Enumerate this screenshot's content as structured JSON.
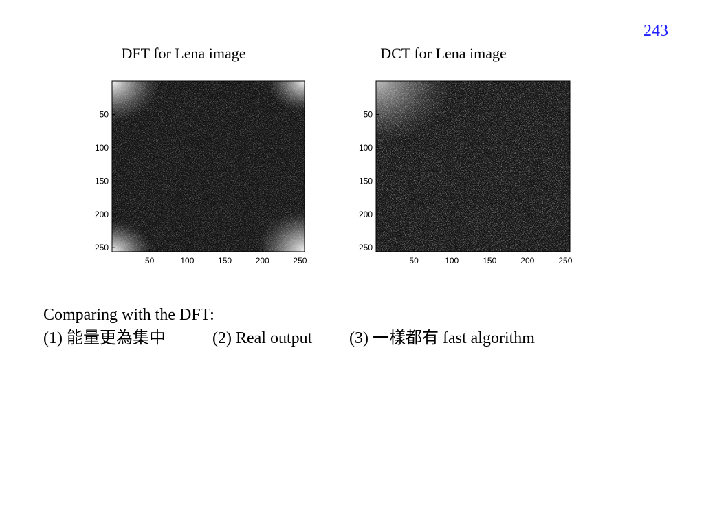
{
  "page_number": "243",
  "panels": [
    {
      "title": "DFT for Lena image",
      "xticks": [
        50,
        100,
        150,
        200,
        250
      ],
      "yticks": [
        50,
        100,
        150,
        200,
        250
      ]
    },
    {
      "title": "DCT for Lena image",
      "xticks": [
        50,
        100,
        150,
        200,
        250
      ],
      "yticks": [
        50,
        100,
        150,
        200,
        250
      ]
    }
  ],
  "caption": {
    "heading": "Comparing with the DFT:",
    "items": [
      "(1) 能量更為集中",
      "(2) Real output",
      "(3) 一樣都有 fast algorithm"
    ]
  }
}
